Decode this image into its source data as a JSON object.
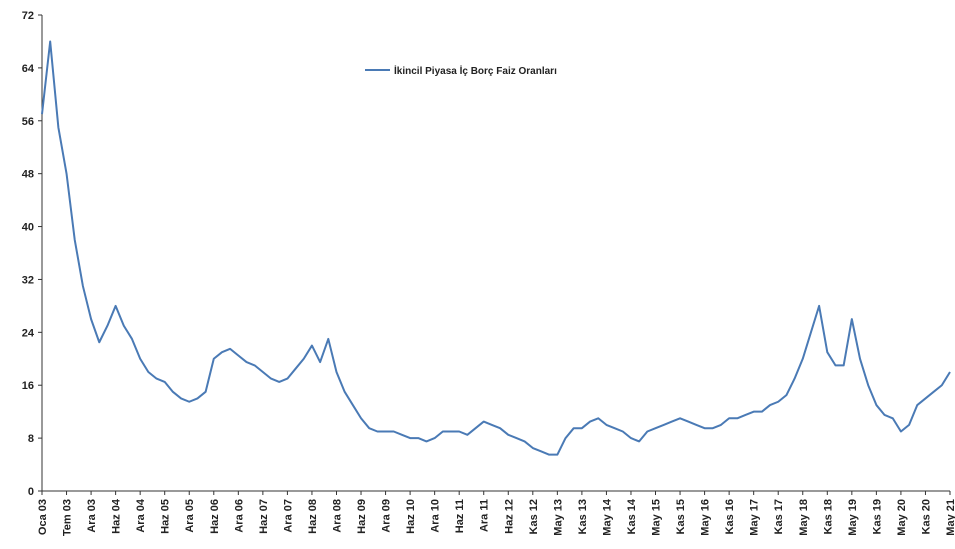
{
  "chart_data": {
    "type": "line",
    "categories": [
      "Oca 03",
      null,
      null,
      "Tem 03",
      null,
      null,
      "Ara 03",
      null,
      null,
      "Haz 04",
      null,
      null,
      "Ara 04",
      null,
      null,
      "Haz 05",
      null,
      null,
      "Ara 05",
      null,
      null,
      "Haz 06",
      null,
      null,
      "Ara 06",
      null,
      null,
      "Haz 07",
      null,
      null,
      "Ara 07",
      null,
      null,
      "Haz 08",
      null,
      null,
      "Ara 08",
      null,
      null,
      "Haz 09",
      null,
      null,
      "Ara 09",
      null,
      null,
      "Haz 10",
      null,
      null,
      "Ara 10",
      null,
      null,
      "Haz 11",
      null,
      null,
      "Ara 11",
      null,
      null,
      "Haz 12",
      null,
      null,
      "Kas 12",
      null,
      null,
      "May 13",
      null,
      null,
      "Kas 13",
      null,
      null,
      "May 14",
      null,
      null,
      "Kas 14",
      null,
      null,
      "May 15",
      null,
      null,
      "Kas 15",
      null,
      null,
      "May 16",
      null,
      null,
      "Kas 16",
      null,
      null,
      "May 17",
      null,
      null,
      "Kas 17",
      null,
      null,
      "May 18",
      null,
      null,
      "Kas 18",
      null,
      null,
      "May 19",
      null,
      null,
      "Kas 19",
      null,
      null,
      "May 20",
      null,
      null,
      "Kas 20",
      null,
      null,
      "May 21"
    ],
    "series": [
      {
        "name": "İkincil Piyasa İç Borç Faiz Oranları",
        "color": "#4a7ab5",
        "values": [
          57,
          68,
          55,
          48,
          38,
          31,
          26,
          22.5,
          25,
          28,
          25,
          23,
          20,
          18,
          17,
          16.5,
          15,
          14,
          13.5,
          14,
          15,
          20,
          21,
          21.5,
          20.5,
          19.5,
          19,
          18,
          17,
          16.5,
          17,
          18.5,
          20,
          22,
          19.5,
          23,
          18,
          15,
          13,
          11,
          9.5,
          9,
          9,
          9,
          8.5,
          8,
          8,
          7.5,
          8,
          9,
          9,
          9,
          8.5,
          9.5,
          10.5,
          10,
          9.5,
          8.5,
          8,
          7.5,
          6.5,
          6,
          5.5,
          5.5,
          8,
          9.5,
          9.5,
          10.5,
          11,
          10,
          9.5,
          9,
          8,
          7.5,
          9,
          9.5,
          10,
          10.5,
          11,
          10.5,
          10,
          9.5,
          9.5,
          10,
          11,
          11,
          11.5,
          12,
          12,
          13,
          13.5,
          14.5,
          17,
          20,
          24,
          28,
          21,
          19,
          19,
          26,
          20,
          16,
          13,
          11.5,
          11,
          9,
          10,
          13,
          14,
          15,
          16,
          18
        ]
      }
    ],
    "ylim": [
      0,
      72
    ],
    "yticks": [
      0,
      8,
      16,
      24,
      32,
      40,
      48,
      56,
      64,
      72
    ],
    "grid": false,
    "legend": "top"
  }
}
